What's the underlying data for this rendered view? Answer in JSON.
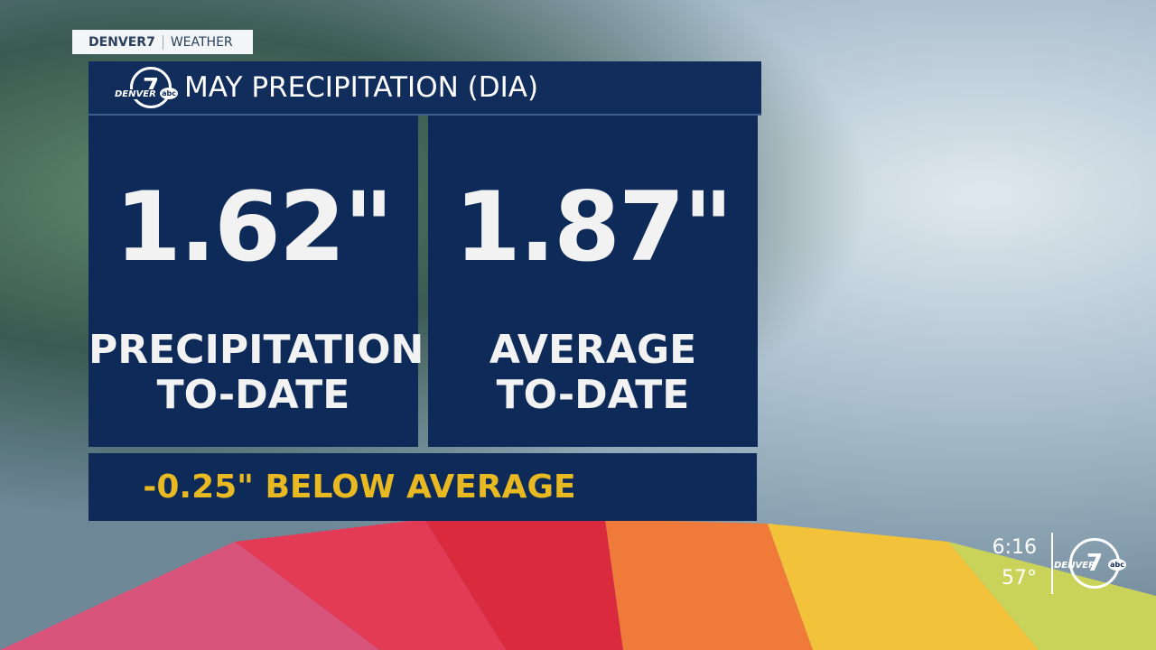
{
  "header": {
    "station": "DENVER7",
    "section": "WEATHER"
  },
  "title": "MAY PRECIPITATION (DIA)",
  "panels": [
    {
      "value": "1.62\"",
      "label": [
        "PRECIPITATION",
        "TO-DATE"
      ]
    },
    {
      "value": "1.87\"",
      "label": [
        "AVERAGE",
        "TO-DATE"
      ]
    }
  ],
  "footer": "-0.25\" BELOW AVERAGE",
  "logo": {
    "number": "7",
    "name": "DENVER",
    "network": "abc"
  },
  "bug": {
    "time": "6:16",
    "temperature": "57°"
  }
}
